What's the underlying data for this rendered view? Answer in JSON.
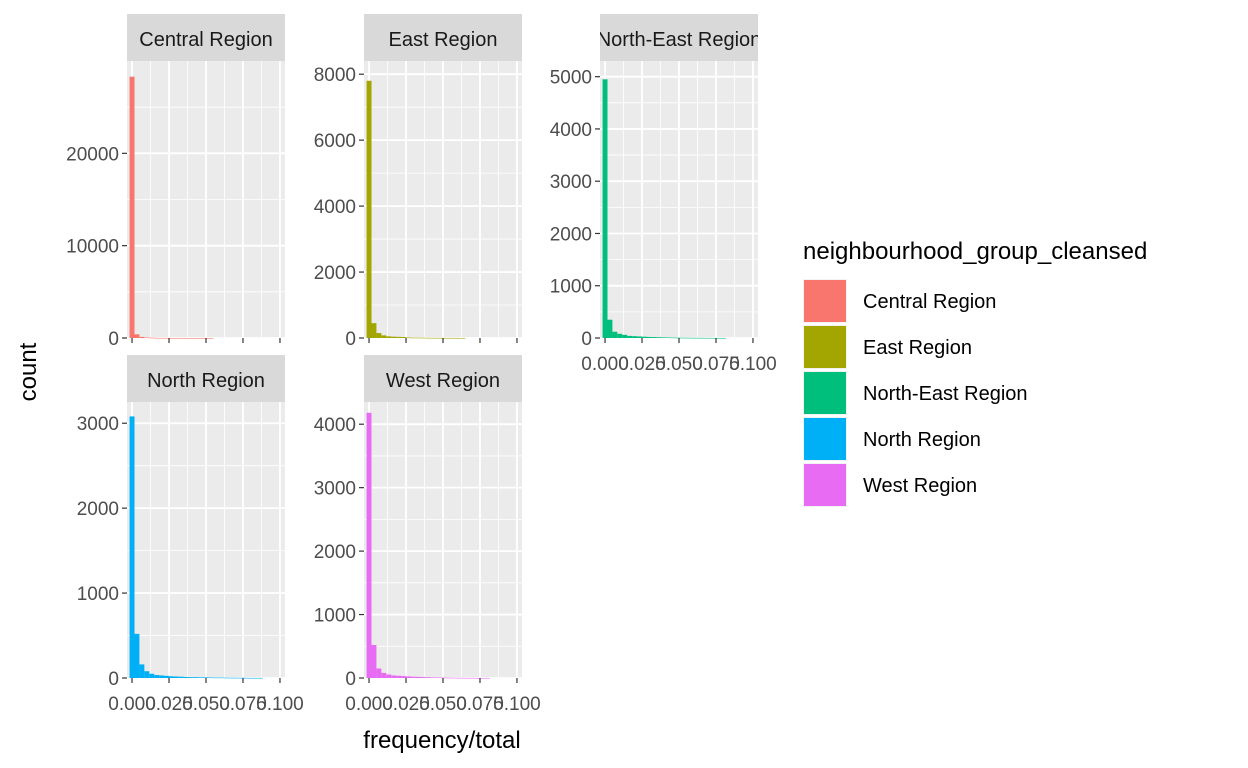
{
  "chart_data": {
    "type": "bar",
    "chart_kind": "faceted histogram",
    "xlabel": "frequency/total",
    "ylabel": "count",
    "x_ticks": [
      "0.000",
      "0.025",
      "0.050",
      "0.075",
      "0.100"
    ],
    "x_tick_values": [
      0,
      0.025,
      0.05,
      0.075,
      0.1
    ],
    "bin_width": 0.003333,
    "legend": {
      "title": "neighbourhood_group_cleansed",
      "position": "right",
      "entries": [
        {
          "label": "Central Region",
          "color": "#F8766D"
        },
        {
          "label": "East Region",
          "color": "#A3A500"
        },
        {
          "label": "North-East Region",
          "color": "#00BF7D"
        },
        {
          "label": "North Region",
          "color": "#00B0F6"
        },
        {
          "label": "West Region",
          "color": "#E76BF3"
        }
      ]
    },
    "panel_background": "#EBEBEB",
    "strip_background": "#D9D9D9",
    "grid": true,
    "facets": [
      {
        "label": "Central Region",
        "color": "#F8766D",
        "ylim": [
          0,
          30000
        ],
        "y_ticks": [
          0,
          10000,
          20000
        ],
        "y_tick_labels": [
          "0",
          "10000",
          "20000"
        ],
        "show_x_axis": false,
        "values": [
          28300,
          400,
          120,
          60,
          30,
          15,
          10,
          8,
          5,
          4,
          3,
          2,
          2,
          1,
          1,
          1,
          1,
          0,
          0,
          0,
          0,
          0,
          0,
          0,
          0,
          0,
          0,
          0,
          0,
          0
        ]
      },
      {
        "label": "East Region",
        "color": "#A3A500",
        "ylim": [
          0,
          8400
        ],
        "y_ticks": [
          0,
          2000,
          4000,
          6000,
          8000
        ],
        "y_tick_labels": [
          "0",
          "2000",
          "4000",
          "6000",
          "8000"
        ],
        "show_x_axis": false,
        "values": [
          7800,
          450,
          150,
          80,
          50,
          40,
          35,
          30,
          15,
          10,
          10,
          8,
          5,
          5,
          4,
          3,
          2,
          2,
          1,
          1,
          0,
          0,
          0,
          0,
          0,
          0,
          0,
          0,
          0,
          0
        ]
      },
      {
        "label": "North-East Region",
        "color": "#00BF7D",
        "ylim": [
          0,
          5300
        ],
        "y_ticks": [
          0,
          1000,
          2000,
          3000,
          4000,
          5000
        ],
        "y_tick_labels": [
          "0",
          "1000",
          "2000",
          "3000",
          "4000",
          "5000"
        ],
        "show_x_axis": true,
        "values": [
          4950,
          350,
          120,
          80,
          60,
          40,
          35,
          30,
          25,
          20,
          18,
          15,
          12,
          10,
          8,
          6,
          5,
          4,
          3,
          3,
          2,
          2,
          1,
          1,
          1,
          0,
          0,
          0,
          0,
          0
        ]
      },
      {
        "label": "North Region",
        "color": "#00B0F6",
        "ylim": [
          0,
          3250
        ],
        "y_ticks": [
          0,
          1000,
          2000,
          3000
        ],
        "y_tick_labels": [
          "0",
          "1000",
          "2000",
          "3000"
        ],
        "show_x_axis": true,
        "values": [
          3080,
          520,
          160,
          80,
          50,
          35,
          30,
          25,
          20,
          18,
          15,
          12,
          10,
          10,
          8,
          8,
          6,
          5,
          5,
          4,
          3,
          3,
          2,
          2,
          1,
          1,
          1,
          0,
          0,
          0
        ]
      },
      {
        "label": "West Region",
        "color": "#E76BF3",
        "ylim": [
          0,
          4350
        ],
        "y_ticks": [
          0,
          1000,
          2000,
          3000,
          4000
        ],
        "y_tick_labels": [
          "0",
          "1000",
          "2000",
          "3000",
          "4000"
        ],
        "show_x_axis": true,
        "values": [
          4180,
          520,
          150,
          80,
          55,
          40,
          35,
          30,
          25,
          20,
          18,
          15,
          12,
          10,
          8,
          6,
          5,
          4,
          3,
          3,
          2,
          2,
          1,
          1,
          1,
          0,
          0,
          0,
          0,
          0
        ]
      }
    ]
  }
}
